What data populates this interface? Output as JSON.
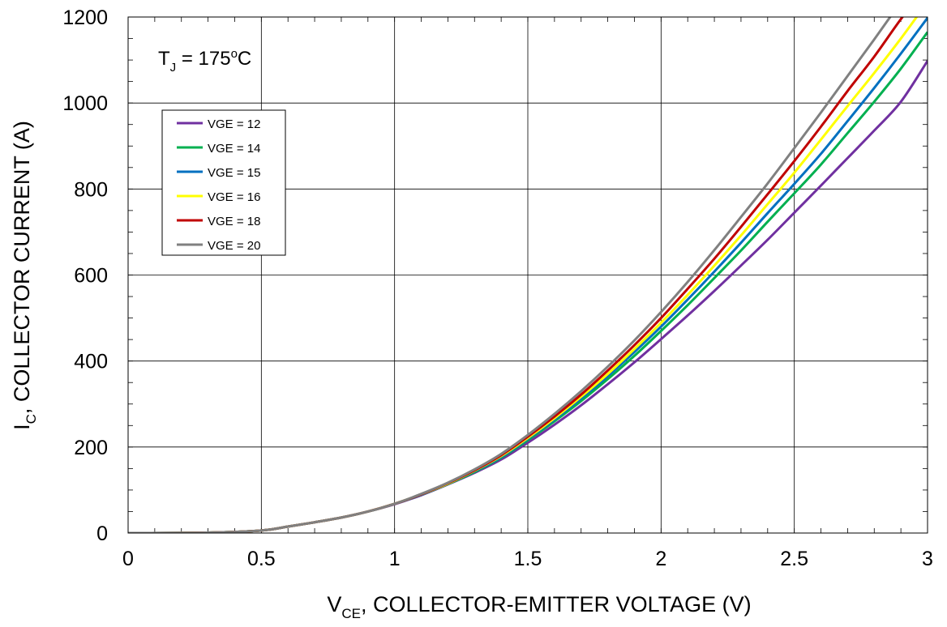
{
  "chart_data": {
    "type": "line",
    "title": "",
    "annotation": {
      "main": "T",
      "sub": "J",
      "mid": " = 175",
      "sup": "o",
      "tail": "C"
    },
    "xlabel": {
      "main": "V",
      "sub": "CE",
      "rest": ", COLLECTOR-EMITTER VOLTAGE (V)"
    },
    "ylabel": {
      "main": "I",
      "sub": "C",
      "rest": ", COLLECTOR CURRENT (A)"
    },
    "xlim": [
      0,
      3
    ],
    "ylim": [
      0,
      1200
    ],
    "xticks": [
      0,
      0.5,
      1,
      1.5,
      2,
      2.5,
      3
    ],
    "xtick_labels": [
      "0",
      "0.5",
      "1",
      "1.5",
      "2",
      "2.5",
      "3"
    ],
    "yticks": [
      0,
      200,
      400,
      600,
      800,
      1000,
      1200
    ],
    "ytick_labels": [
      "0",
      "200",
      "400",
      "600",
      "800",
      "1000",
      "1200"
    ],
    "x_minor_step": 0.1,
    "y_minor_step": 50,
    "grid": true,
    "legend_position": "upper-left",
    "x": [
      0,
      0.3,
      0.5,
      0.6,
      0.7,
      0.8,
      0.9,
      1.0,
      1.1,
      1.2,
      1.3,
      1.4,
      1.5,
      1.6,
      1.7,
      1.8,
      1.9,
      2.0,
      2.1,
      2.2,
      2.3,
      2.4,
      2.5,
      2.6,
      2.7,
      2.8,
      2.9,
      3.0
    ],
    "series": [
      {
        "name": "VGE = 12",
        "color": "#7030A0",
        "values": [
          0,
          1,
          6,
          15,
          25,
          36,
          50,
          67,
          88,
          113,
          140,
          171,
          210,
          252,
          297,
          346,
          397,
          451,
          506,
          563,
          622,
          682,
          745,
          808,
          872,
          936,
          1003,
          1098
        ]
      },
      {
        "name": "VGE = 14",
        "color": "#00B050",
        "values": [
          0,
          1,
          6,
          15,
          25,
          36,
          50,
          68,
          89,
          114,
          142,
          175,
          216,
          260,
          307,
          358,
          412,
          470,
          530,
          593,
          657,
          724,
          790,
          857,
          930,
          1003,
          1080,
          1165
        ]
      },
      {
        "name": "VGE = 15",
        "color": "#0070C0",
        "values": [
          0,
          1,
          6,
          15,
          25,
          36,
          50,
          68,
          89,
          115,
          144,
          177,
          219,
          264,
          313,
          365,
          421,
          480,
          543,
          608,
          675,
          744,
          812,
          882,
          958,
          1035,
          1115,
          1198
        ]
      },
      {
        "name": "VGE = 16",
        "color": "#FFFF00",
        "values": [
          0,
          1,
          6,
          15,
          25,
          36,
          50,
          68,
          90,
          115,
          145,
          179,
          221,
          267,
          317,
          370,
          428,
          489,
          554,
          622,
          692,
          765,
          838,
          915,
          993,
          1070,
          1150,
          1235
        ]
      },
      {
        "name": "VGE = 18",
        "color": "#C00000",
        "values": [
          0,
          1,
          6,
          15,
          25,
          36,
          50,
          68,
          90,
          116,
          146,
          181,
          224,
          271,
          322,
          378,
          437,
          500,
          568,
          638,
          712,
          788,
          865,
          945,
          1028,
          1108,
          1195,
          1275
        ]
      },
      {
        "name": "VGE = 20",
        "color": "#808080",
        "values": [
          0,
          1,
          6,
          15,
          25,
          36,
          50,
          68,
          91,
          117,
          148,
          184,
          228,
          277,
          330,
          387,
          448,
          514,
          584,
          658,
          735,
          813,
          895,
          978,
          1063,
          1148,
          1235,
          1320
        ]
      }
    ]
  }
}
